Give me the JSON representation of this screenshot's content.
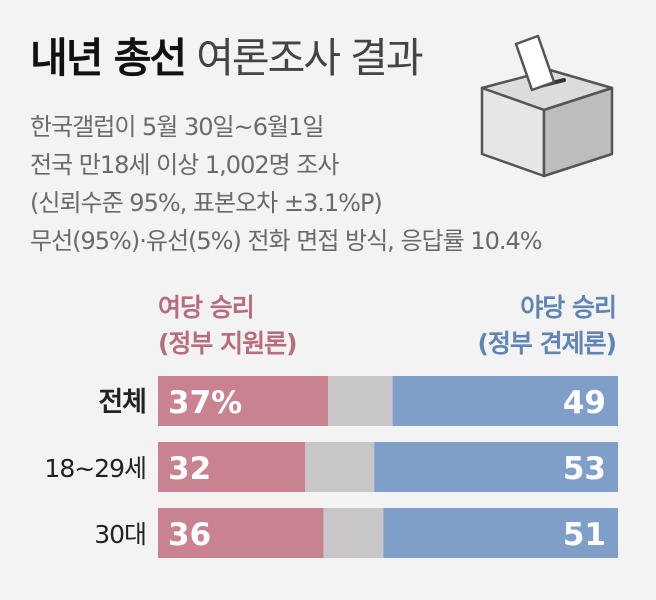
{
  "title": {
    "bold": "내년 총선",
    "light": "여론조사 결과"
  },
  "meta": [
    "한국갤럽이 5월 30일~6월1일",
    "전국 만18세 이상 1,002명 조사",
    "(신뢰수준 95%, 표본오차 ±3.1%P)",
    "무선(95%)·유선(5%) 전화 면접 방식, 응답률 10.4%"
  ],
  "legend": {
    "left": {
      "line1": "여당 승리",
      "line2": "(정부 지원론)"
    },
    "right": {
      "line1": "야당 승리",
      "line2": "(정부 견제론)"
    }
  },
  "colors": {
    "ruling": "#c9828f",
    "opposition": "#7f9fc8",
    "other": "#c8c6c6"
  },
  "chart_data": {
    "type": "bar",
    "stacked": true,
    "categories": [
      "전체",
      "18~29세",
      "30대"
    ],
    "series": [
      {
        "name": "여당 승리(정부 지원론)",
        "values": [
          37,
          32,
          36
        ],
        "labels": [
          "37%",
          "32",
          "36"
        ]
      },
      {
        "name": "",
        "values": [
          14,
          15,
          13
        ]
      },
      {
        "name": "야당 승리(정부 견제론)",
        "values": [
          49,
          53,
          51
        ],
        "labels": [
          "49",
          "53",
          "51"
        ]
      }
    ],
    "xlim": [
      0,
      100
    ]
  }
}
